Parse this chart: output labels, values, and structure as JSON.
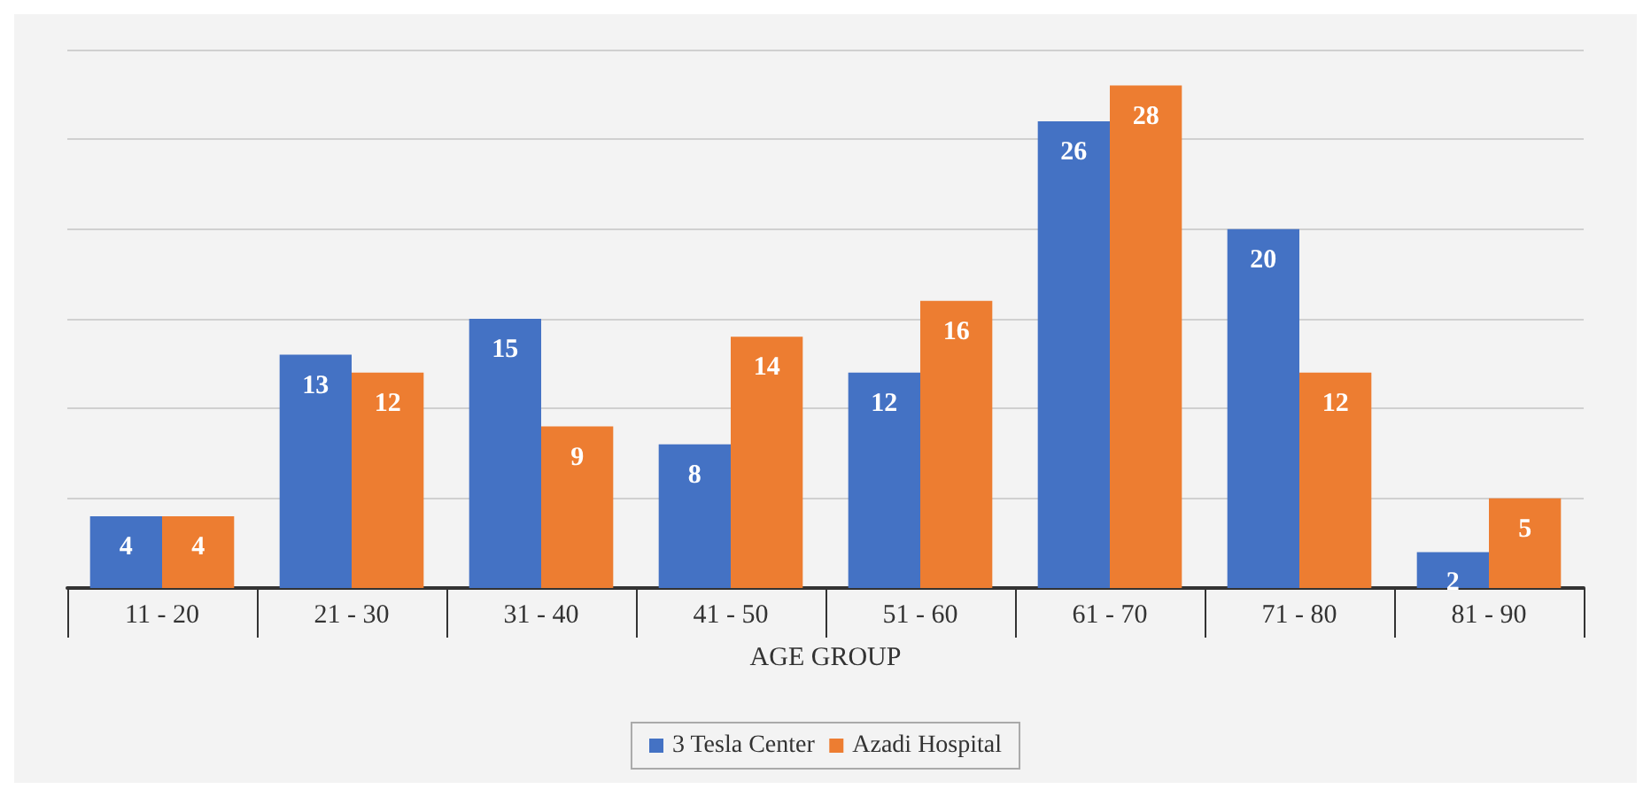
{
  "chart_data": {
    "type": "bar",
    "xlabel": "AGE GROUP",
    "categories": [
      "11 - 20",
      "21 - 30",
      "31 - 40",
      "41 - 50",
      "51 - 60",
      "61 - 70",
      "71 - 80",
      "81 - 90"
    ],
    "series": [
      {
        "name": "3 Tesla Center",
        "color": "#4472c4",
        "values": [
          4,
          13,
          15,
          8,
          12,
          26,
          20,
          2
        ]
      },
      {
        "name": "Azadi Hospital",
        "color": "#ed7d31",
        "values": [
          4,
          12,
          9,
          14,
          16,
          28,
          12,
          5
        ]
      }
    ],
    "ylim": [
      0,
      30
    ],
    "yticks": [
      {
        "value": 0,
        "label": null
      },
      {
        "value": 5,
        "label": null
      },
      {
        "value": 10,
        "label": null
      },
      {
        "value": 15,
        "label": null
      },
      {
        "value": 20,
        "label": null
      },
      {
        "value": 25,
        "label": null
      },
      {
        "value": 30,
        "label": null
      }
    ],
    "tick_labels": "x",
    "grid": "y",
    "legend": "bottom",
    "data_labels": true
  }
}
